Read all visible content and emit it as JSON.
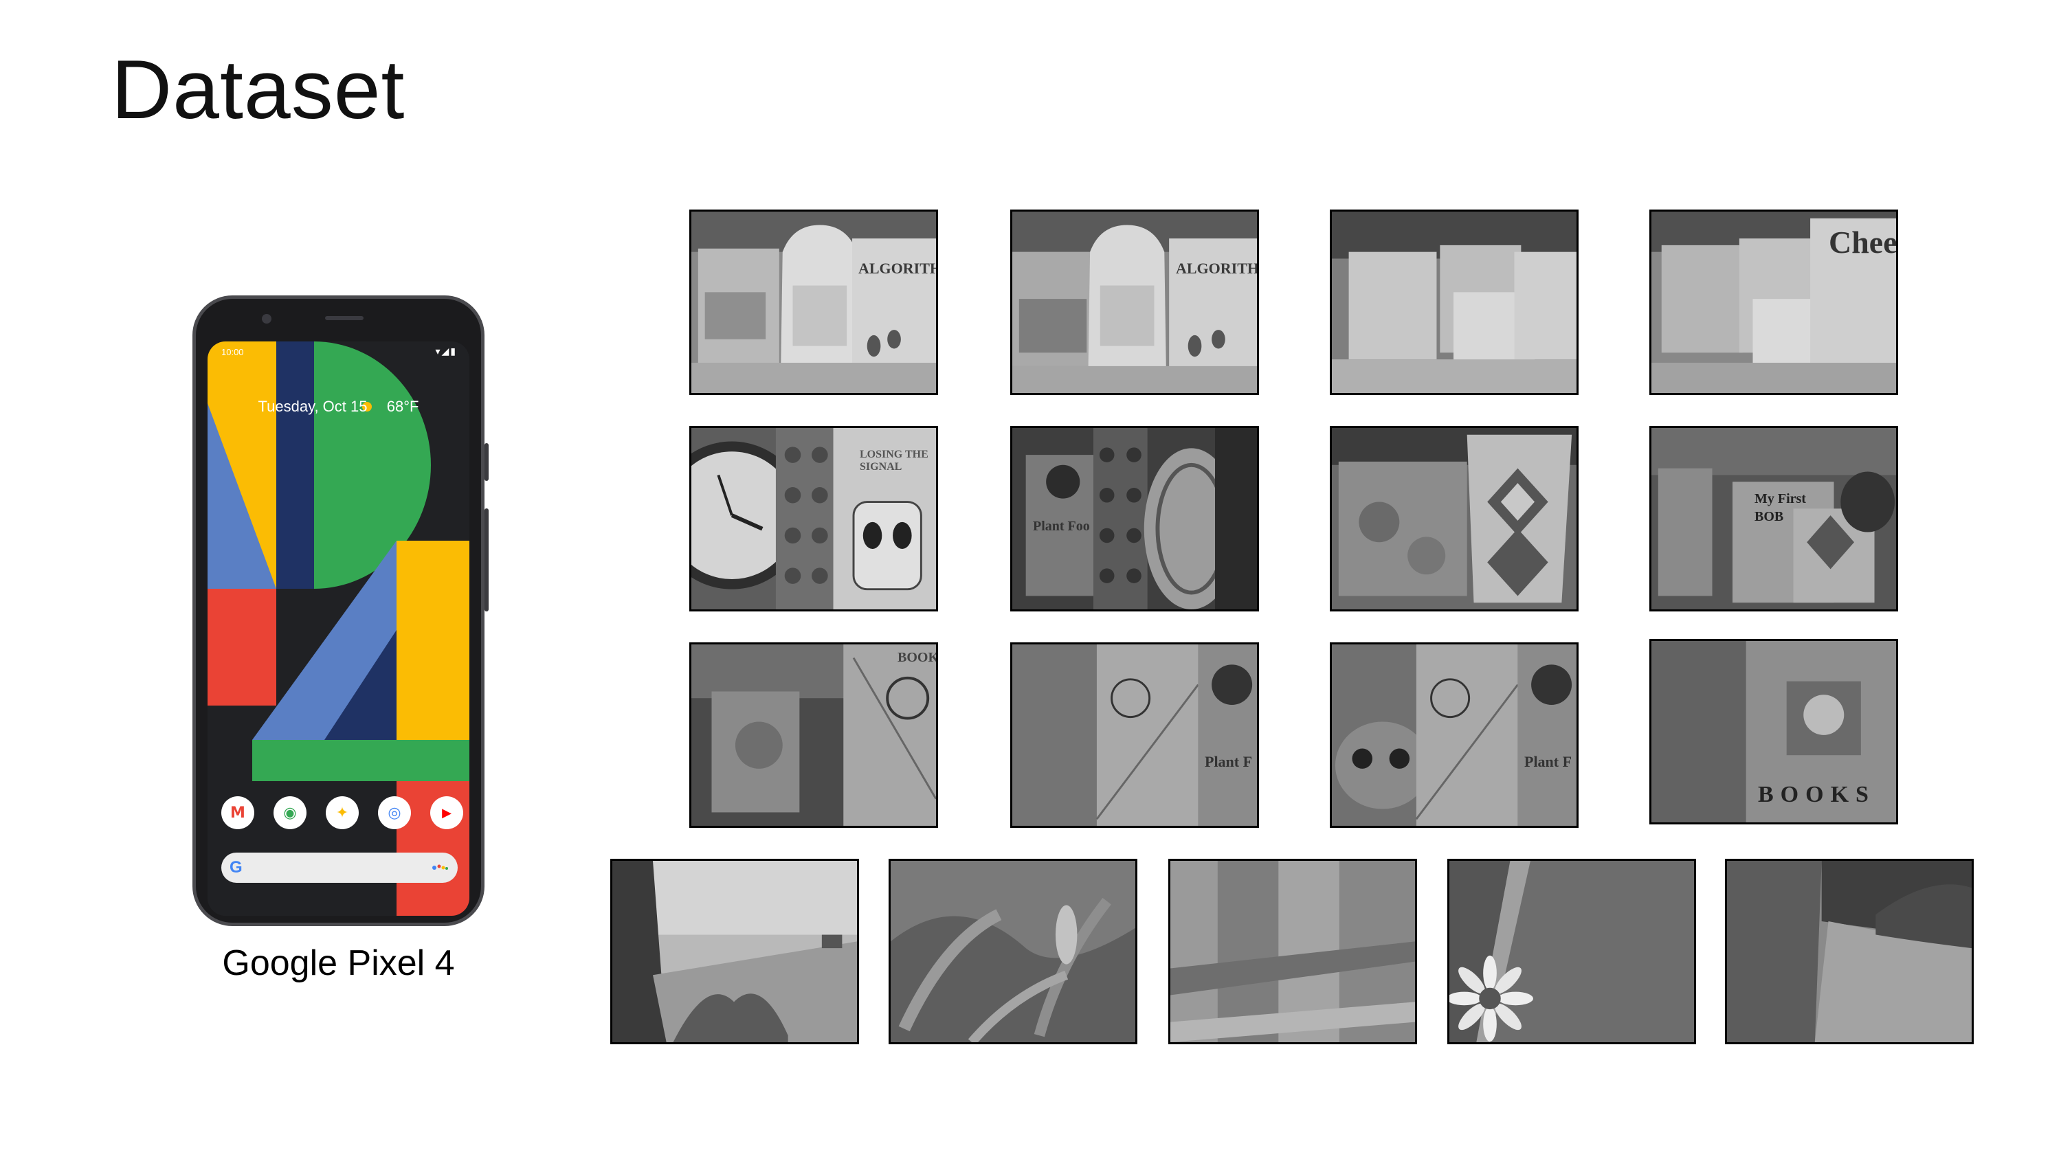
{
  "slide": {
    "title": "Dataset"
  },
  "device": {
    "name": "Google Pixel 4",
    "status_time": "10:00",
    "status_icons": "▾◢▮",
    "date_widget": "Tuesday, Oct 15",
    "weather": "68°F",
    "dock_apps": [
      {
        "name": "gmail",
        "glyph": "M",
        "color": "#ea4335"
      },
      {
        "name": "maps",
        "glyph": "◉",
        "color": "#34a853"
      },
      {
        "name": "photos",
        "glyph": "✦",
        "color": "#fbbc04"
      },
      {
        "name": "chrome",
        "glyph": "◎",
        "color": "#4285f4"
      },
      {
        "name": "youtube",
        "glyph": "▶",
        "color": "#ff0000"
      }
    ],
    "search_logo": "G",
    "colors": {
      "yellow": "#fbbc04",
      "navy": "#1f3264",
      "green": "#34a853",
      "blue": "#5a7fc4",
      "red": "#ea4335",
      "dark": "#202124"
    }
  },
  "samples": {
    "row1": [
      {
        "label": "ALGORITH"
      },
      {
        "label": "ALGORITH"
      },
      {
        "label": ""
      },
      {
        "label": "Cheer"
      }
    ],
    "row2": [
      {
        "label": "LOSING THE SIGNAL"
      },
      {
        "label": "Plant Foo"
      },
      {
        "label": ""
      },
      {
        "label": "My First BOB"
      }
    ],
    "row3": [
      {
        "label": "BOOKS"
      },
      {
        "label": "Plant F"
      },
      {
        "label": "Plant F"
      },
      {
        "label": "BOOKS"
      }
    ],
    "row4": [
      {
        "label": ""
      },
      {
        "label": ""
      },
      {
        "label": ""
      },
      {
        "label": ""
      },
      {
        "label": ""
      }
    ]
  }
}
